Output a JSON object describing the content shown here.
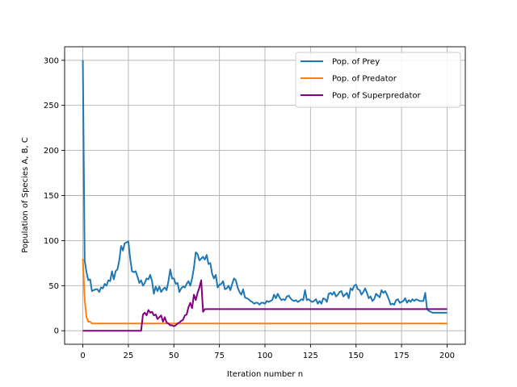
{
  "chart_data": {
    "type": "line",
    "title": "",
    "xlabel": "Iteration number n",
    "ylabel": "Population of Species A, B, C",
    "xlim": [
      -10,
      210
    ],
    "ylim": [
      -15,
      315
    ],
    "xticks": [
      0,
      25,
      50,
      75,
      100,
      125,
      150,
      175,
      200
    ],
    "yticks": [
      0,
      50,
      100,
      150,
      200,
      250,
      300
    ],
    "grid": true,
    "legend_position": "top-right",
    "series": [
      {
        "name": "Pop. of Prey",
        "color": "#1f77b4",
        "x": [
          0,
          1,
          2,
          3,
          4,
          5,
          6,
          7,
          8,
          9,
          10,
          11,
          12,
          13,
          14,
          15,
          16,
          17,
          18,
          19,
          20,
          21,
          22,
          23,
          24,
          25,
          26,
          27,
          28,
          29,
          30,
          31,
          32,
          33,
          34,
          35,
          36,
          37,
          38,
          39,
          40,
          41,
          42,
          43,
          44,
          45,
          46,
          47,
          48,
          49,
          50,
          51,
          52,
          53,
          54,
          55,
          56,
          57,
          58,
          59,
          60,
          61,
          62,
          63,
          64,
          65,
          66,
          67,
          68,
          69,
          70,
          71,
          72,
          73,
          74,
          75,
          76,
          77,
          78,
          79,
          80,
          81,
          82,
          83,
          84,
          85,
          86,
          87,
          88,
          89,
          90,
          91,
          92,
          93,
          94,
          95,
          96,
          97,
          98,
          99,
          100,
          101,
          102,
          103,
          104,
          105,
          106,
          107,
          108,
          109,
          110,
          111,
          112,
          113,
          114,
          115,
          116,
          117,
          118,
          119,
          120,
          121,
          122,
          123,
          124,
          125,
          126,
          127,
          128,
          129,
          130,
          131,
          132,
          133,
          134,
          135,
          136,
          137,
          138,
          139,
          140,
          141,
          142,
          143,
          144,
          145,
          146,
          147,
          148,
          149,
          150,
          151,
          152,
          153,
          154,
          155,
          156,
          157,
          158,
          159,
          160,
          161,
          162,
          163,
          164,
          165,
          166,
          167,
          168,
          169,
          170,
          171,
          172,
          173,
          174,
          175,
          176,
          177,
          178,
          179,
          180,
          181,
          182,
          183,
          184,
          185,
          186,
          187,
          188,
          189,
          190,
          191,
          192,
          193,
          194,
          195,
          196,
          197,
          198,
          199,
          200
        ],
        "y": [
          300,
          78,
          65,
          56,
          57,
          44,
          45,
          46,
          46,
          43,
          48,
          47,
          52,
          50,
          56,
          55,
          66,
          57,
          66,
          68,
          78,
          94,
          89,
          97,
          98,
          99,
          80,
          66,
          65,
          66,
          60,
          53,
          56,
          50,
          53,
          58,
          57,
          62,
          55,
          41,
          49,
          44,
          49,
          43,
          46,
          48,
          45,
          55,
          68,
          58,
          58,
          52,
          53,
          43,
          47,
          49,
          48,
          52,
          55,
          50,
          58,
          70,
          87,
          85,
          78,
          80,
          82,
          79,
          84,
          74,
          75,
          63,
          58,
          62,
          48,
          51,
          52,
          55,
          46,
          47,
          50,
          45,
          52,
          58,
          56,
          48,
          43,
          40,
          46,
          37,
          36,
          35,
          33,
          32,
          30,
          31,
          31,
          29,
          31,
          31,
          30,
          33,
          32,
          33,
          34,
          40,
          36,
          41,
          37,
          34,
          35,
          34,
          38,
          39,
          36,
          34,
          33,
          34,
          32,
          33,
          35,
          34,
          45,
          34,
          35,
          33,
          32,
          33,
          35,
          30,
          33,
          30,
          36,
          35,
          32,
          41,
          42,
          40,
          43,
          38,
          40,
          43,
          44,
          38,
          40,
          42,
          36,
          47,
          45,
          50,
          51,
          46,
          45,
          40,
          43,
          47,
          42,
          36,
          38,
          33,
          35,
          41,
          39,
          37,
          45,
          42,
          44,
          40,
          35,
          29,
          30,
          29,
          34,
          35,
          31,
          32,
          33,
          36,
          31,
          34,
          32,
          35,
          33,
          35,
          34,
          33,
          33,
          33,
          42,
          24,
          22,
          21,
          20,
          20,
          20,
          20,
          20,
          20,
          20,
          20,
          20
        ]
      },
      {
        "name": "Pop. of Predator",
        "color": "#ff7f0e",
        "x": [
          0,
          1,
          2,
          3,
          4,
          5,
          6,
          7,
          8,
          200
        ],
        "y": [
          80,
          35,
          15,
          10,
          10,
          8,
          8,
          8,
          8,
          8
        ]
      },
      {
        "name": "Pop. of Superpredator",
        "color": "#800080",
        "x": [
          0,
          32,
          33,
          34,
          35,
          36,
          37,
          38,
          39,
          40,
          41,
          42,
          43,
          44,
          45,
          46,
          47,
          48,
          49,
          50,
          51,
          52,
          53,
          54,
          55,
          56,
          57,
          58,
          59,
          60,
          61,
          62,
          63,
          64,
          65,
          66,
          67,
          68,
          200
        ],
        "y": [
          0,
          0,
          18,
          20,
          17,
          23,
          20,
          21,
          17,
          18,
          13,
          15,
          17,
          10,
          15,
          9,
          8,
          6,
          6,
          5,
          6,
          8,
          9,
          11,
          12,
          17,
          18,
          26,
          31,
          25,
          40,
          34,
          42,
          48,
          56,
          21,
          24,
          24,
          24
        ]
      }
    ]
  }
}
